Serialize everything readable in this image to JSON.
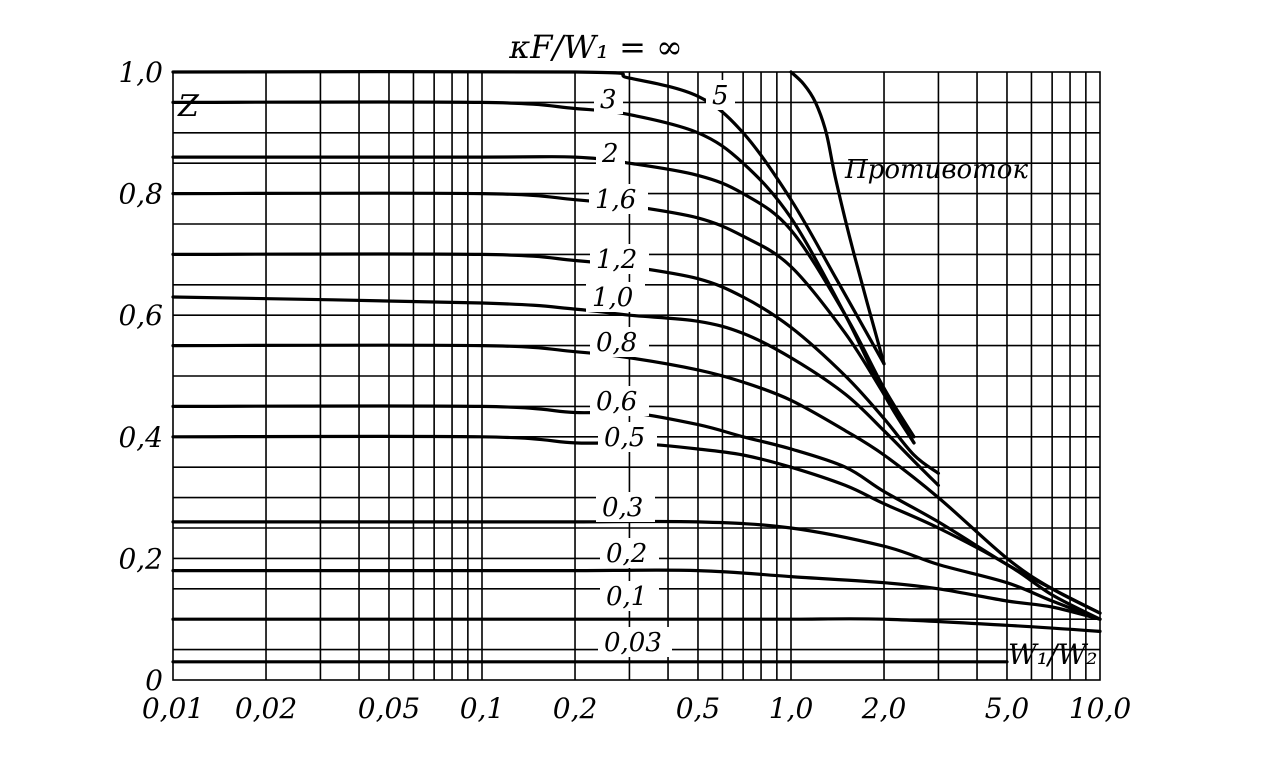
{
  "chart_data": {
    "type": "line",
    "title": "κF/W₁ = ∞",
    "ylabel": "Z",
    "xlabel": "W₁/W₂",
    "x_scale": "log",
    "xlim": [
      0.01,
      10.0
    ],
    "ylim": [
      0,
      1.0
    ],
    "grid": true,
    "x_ticks": [
      0.01,
      0.02,
      0.05,
      0.1,
      0.2,
      0.5,
      1.0,
      2.0,
      5.0,
      10.0
    ],
    "x_tick_labels": [
      "0,01",
      "0,02",
      "0,05",
      "0,1",
      "0,2",
      "0,5",
      "1,0",
      "2,0",
      "5,0",
      "10,0"
    ],
    "y_ticks": [
      0,
      0.2,
      0.4,
      0.6,
      0.8,
      1.0
    ],
    "y_tick_labels": [
      "0",
      "0,2",
      "0,4",
      "0,6",
      "0,8",
      "1,0"
    ],
    "annotation": "Противоток",
    "series": [
      {
        "name": "∞",
        "x": [
          0.01,
          0.2,
          0.3,
          0.5,
          0.7,
          1.0,
          1.4,
          2.0
        ],
        "y": [
          1.0,
          1.0,
          0.99,
          0.96,
          0.9,
          0.79,
          0.66,
          0.52
        ]
      },
      {
        "name": "5",
        "x": [
          1.0,
          1.1,
          1.2,
          1.3,
          1.4,
          1.6,
          2.0
        ],
        "y": [
          1.0,
          0.98,
          0.95,
          0.9,
          0.82,
          0.7,
          0.52
        ]
      },
      {
        "name": "3",
        "x": [
          0.01,
          0.1,
          0.2,
          0.3,
          0.5,
          0.7,
          1.0,
          1.5,
          2.0,
          2.5
        ],
        "y": [
          0.95,
          0.95,
          0.94,
          0.93,
          0.9,
          0.85,
          0.76,
          0.6,
          0.47,
          0.39
        ]
      },
      {
        "name": "2",
        "x": [
          0.01,
          0.1,
          0.2,
          0.3,
          0.5,
          0.7,
          1.0,
          1.5,
          2.0,
          2.5
        ],
        "y": [
          0.86,
          0.86,
          0.86,
          0.85,
          0.83,
          0.8,
          0.74,
          0.6,
          0.48,
          0.4
        ]
      },
      {
        "name": "1,6",
        "x": [
          0.01,
          0.1,
          0.2,
          0.3,
          0.5,
          0.7,
          1.0,
          1.5,
          2.0,
          2.5
        ],
        "y": [
          0.8,
          0.8,
          0.79,
          0.78,
          0.76,
          0.73,
          0.68,
          0.57,
          0.47,
          0.39
        ]
      },
      {
        "name": "1,2",
        "x": [
          0.01,
          0.1,
          0.2,
          0.3,
          0.5,
          0.7,
          1.0,
          1.5,
          2.0,
          2.5,
          3.0
        ],
        "y": [
          0.7,
          0.7,
          0.69,
          0.68,
          0.66,
          0.63,
          0.58,
          0.5,
          0.43,
          0.37,
          0.34
        ]
      },
      {
        "name": "1,0",
        "x": [
          0.01,
          0.1,
          0.2,
          0.3,
          0.5,
          0.7,
          1.0,
          1.5,
          2.0,
          2.5,
          3.0
        ],
        "y": [
          0.63,
          0.62,
          0.61,
          0.6,
          0.59,
          0.57,
          0.53,
          0.47,
          0.41,
          0.36,
          0.32
        ]
      },
      {
        "name": "0,8",
        "x": [
          0.01,
          0.1,
          0.2,
          0.3,
          0.5,
          0.7,
          1.0,
          1.5,
          2.0,
          3.0,
          5.0,
          7.0,
          10.0
        ],
        "y": [
          0.55,
          0.55,
          0.54,
          0.53,
          0.51,
          0.49,
          0.46,
          0.41,
          0.37,
          0.3,
          0.2,
          0.15,
          0.11
        ]
      },
      {
        "name": "0,6",
        "x": [
          0.01,
          0.1,
          0.2,
          0.3,
          0.5,
          0.7,
          1.0,
          1.5,
          2.0,
          3.0,
          5.0,
          7.0,
          10.0
        ],
        "y": [
          0.45,
          0.45,
          0.44,
          0.44,
          0.42,
          0.4,
          0.38,
          0.35,
          0.31,
          0.26,
          0.19,
          0.15,
          0.11
        ]
      },
      {
        "name": "0,5",
        "x": [
          0.01,
          0.1,
          0.2,
          0.3,
          0.5,
          0.7,
          1.0,
          1.5,
          2.0,
          3.0,
          5.0,
          7.0,
          10.0
        ],
        "y": [
          0.4,
          0.4,
          0.39,
          0.39,
          0.38,
          0.37,
          0.35,
          0.32,
          0.29,
          0.25,
          0.19,
          0.14,
          0.1
        ]
      },
      {
        "name": "0,3",
        "x": [
          0.01,
          0.1,
          0.2,
          0.5,
          1.0,
          2.0,
          3.0,
          5.0,
          7.0,
          10.0
        ],
        "y": [
          0.26,
          0.26,
          0.26,
          0.26,
          0.25,
          0.22,
          0.19,
          0.16,
          0.13,
          0.1
        ]
      },
      {
        "name": "0,2",
        "x": [
          0.01,
          0.1,
          0.2,
          0.5,
          1.0,
          2.0,
          3.0,
          5.0,
          7.0,
          10.0
        ],
        "y": [
          0.18,
          0.18,
          0.18,
          0.18,
          0.17,
          0.16,
          0.15,
          0.13,
          0.12,
          0.1
        ]
      },
      {
        "name": "0,1",
        "x": [
          0.01,
          0.1,
          0.2,
          0.5,
          1.0,
          2.0,
          5.0,
          10.0
        ],
        "y": [
          0.1,
          0.1,
          0.1,
          0.1,
          0.1,
          0.1,
          0.09,
          0.08
        ]
      },
      {
        "name": "0,03",
        "x": [
          0.01,
          0.1,
          0.2,
          0.5,
          1.0,
          2.0,
          5.0
        ],
        "y": [
          0.03,
          0.03,
          0.03,
          0.03,
          0.03,
          0.03,
          0.03
        ]
      }
    ]
  }
}
